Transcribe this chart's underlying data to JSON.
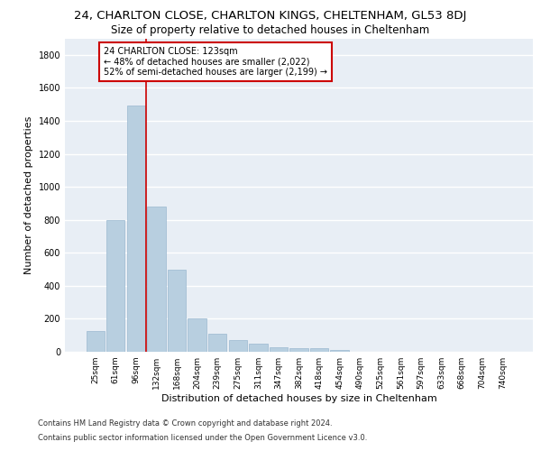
{
  "suptitle": "24, CHARLTON CLOSE, CHARLTON KINGS, CHELTENHAM, GL53 8DJ",
  "title": "Size of property relative to detached houses in Cheltenham",
  "xlabel": "Distribution of detached houses by size in Cheltenham",
  "ylabel": "Number of detached properties",
  "categories": [
    "25sqm",
    "61sqm",
    "96sqm",
    "132sqm",
    "168sqm",
    "204sqm",
    "239sqm",
    "275sqm",
    "311sqm",
    "347sqm",
    "382sqm",
    "418sqm",
    "454sqm",
    "490sqm",
    "525sqm",
    "561sqm",
    "597sqm",
    "633sqm",
    "668sqm",
    "704sqm",
    "740sqm"
  ],
  "values": [
    125,
    800,
    1490,
    880,
    500,
    205,
    110,
    70,
    50,
    30,
    20,
    20,
    10,
    0,
    0,
    0,
    0,
    0,
    0,
    0,
    0
  ],
  "bar_color": "#b8cfe0",
  "bar_edge_color": "#9ab8d0",
  "vline_idx": 2.5,
  "vline_color": "#cc0000",
  "annotation_line1": "24 CHARLTON CLOSE: 123sqm",
  "annotation_line2": "← 48% of detached houses are smaller (2,022)",
  "annotation_line3": "52% of semi-detached houses are larger (2,199) →",
  "annotation_box_facecolor": "#ffffff",
  "annotation_box_edgecolor": "#cc0000",
  "ylim": [
    0,
    1900
  ],
  "yticks": [
    0,
    200,
    400,
    600,
    800,
    1000,
    1200,
    1400,
    1600,
    1800
  ],
  "footer1": "Contains HM Land Registry data © Crown copyright and database right 2024.",
  "footer2": "Contains public sector information licensed under the Open Government Licence v3.0.",
  "bg_color": "#e8eef5",
  "grid_color": "#ffffff",
  "suptitle_fontsize": 9.5,
  "title_fontsize": 8.5,
  "tick_fontsize": 6.5,
  "ylabel_fontsize": 8,
  "xlabel_fontsize": 8,
  "ann_fontsize": 7,
  "footer_fontsize": 6
}
